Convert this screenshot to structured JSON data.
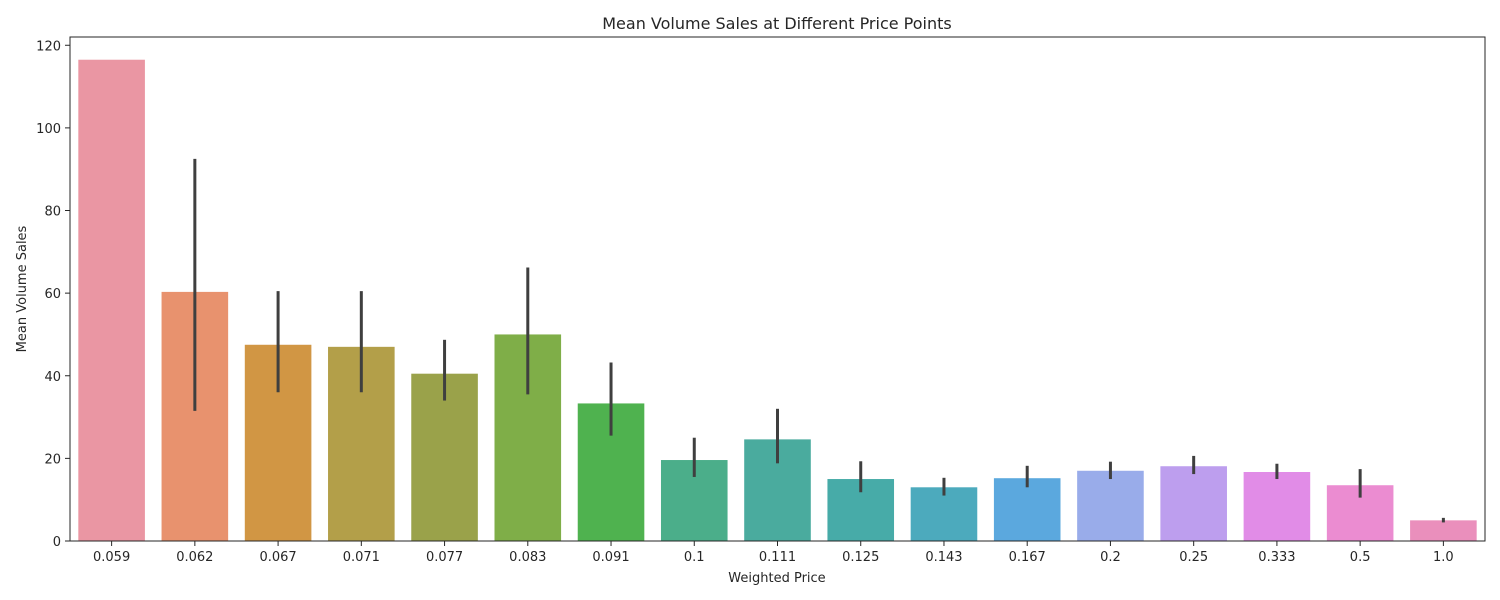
{
  "chart_data": {
    "type": "bar",
    "title": "Mean Volume Sales at Different Price Points",
    "xlabel": "Weighted Price",
    "ylabel": "Mean Volume Sales",
    "ylim": [
      0,
      122
    ],
    "yticks": [
      0,
      20,
      40,
      60,
      80,
      100,
      120
    ],
    "grid": false,
    "legend": "none",
    "categories": [
      "0.059",
      "0.062",
      "0.067",
      "0.071",
      "0.077",
      "0.083",
      "0.091",
      "0.1",
      "0.111",
      "0.125",
      "0.143",
      "0.167",
      "0.2",
      "0.25",
      "0.333",
      "0.5",
      "1.0"
    ],
    "values": [
      116.5,
      60.3,
      47.5,
      47.0,
      40.5,
      50.0,
      33.3,
      19.6,
      24.6,
      15.0,
      13.0,
      15.2,
      17.0,
      18.1,
      16.7,
      13.5,
      5.0
    ],
    "error_low": [
      null,
      31.5,
      36.0,
      36.0,
      34.0,
      35.5,
      25.5,
      15.5,
      18.8,
      11.8,
      11.0,
      13.0,
      15.0,
      16.2,
      15.0,
      10.5,
      4.5
    ],
    "error_high": [
      null,
      92.5,
      60.5,
      60.5,
      48.7,
      66.2,
      43.2,
      25.0,
      32.0,
      19.3,
      15.3,
      18.2,
      19.2,
      20.6,
      18.7,
      17.4,
      5.6
    ],
    "colors": [
      "#ea96a3",
      "#e8926e",
      "#d19644",
      "#b39f49",
      "#9aa24a",
      "#7fae48",
      "#4fb24f",
      "#4bae8a",
      "#4aab9e",
      "#47aba8",
      "#4caabd",
      "#5ba8de",
      "#99acea",
      "#bd9eee",
      "#e18ce7",
      "#eb8cd1",
      "#ea8fbc"
    ],
    "error_color": "#3f3f3f"
  }
}
